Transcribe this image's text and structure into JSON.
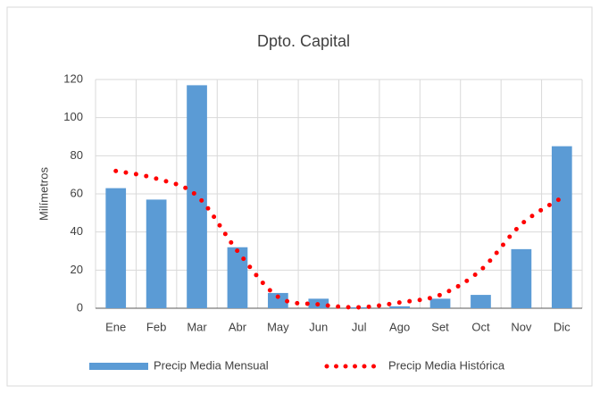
{
  "chart_data": {
    "type": "combo",
    "title": "Dpto. Capital",
    "y_label": "Milímetros",
    "categories": [
      "Ene",
      "Feb",
      "Mar",
      "Abr",
      "May",
      "Jun",
      "Jul",
      "Ago",
      "Set",
      "Oct",
      "Nov",
      "Dic"
    ],
    "series": [
      {
        "name": "Precip Media Mensual",
        "type": "bar",
        "color": "#5b9bd5",
        "values": [
          63,
          57,
          117,
          32,
          8,
          5,
          0.5,
          1,
          5,
          7,
          31,
          85
        ]
      },
      {
        "name": "Precip Media Histórica",
        "type": "line",
        "color": "#ff0000",
        "values": [
          72,
          68,
          59,
          30,
          6,
          2,
          0.5,
          3,
          7,
          20,
          44,
          58
        ]
      }
    ],
    "ylim": [
      0,
      120
    ],
    "yticks": [
      0,
      20,
      40,
      60,
      80,
      100,
      120
    ],
    "grid": true,
    "legend": "bottom"
  }
}
